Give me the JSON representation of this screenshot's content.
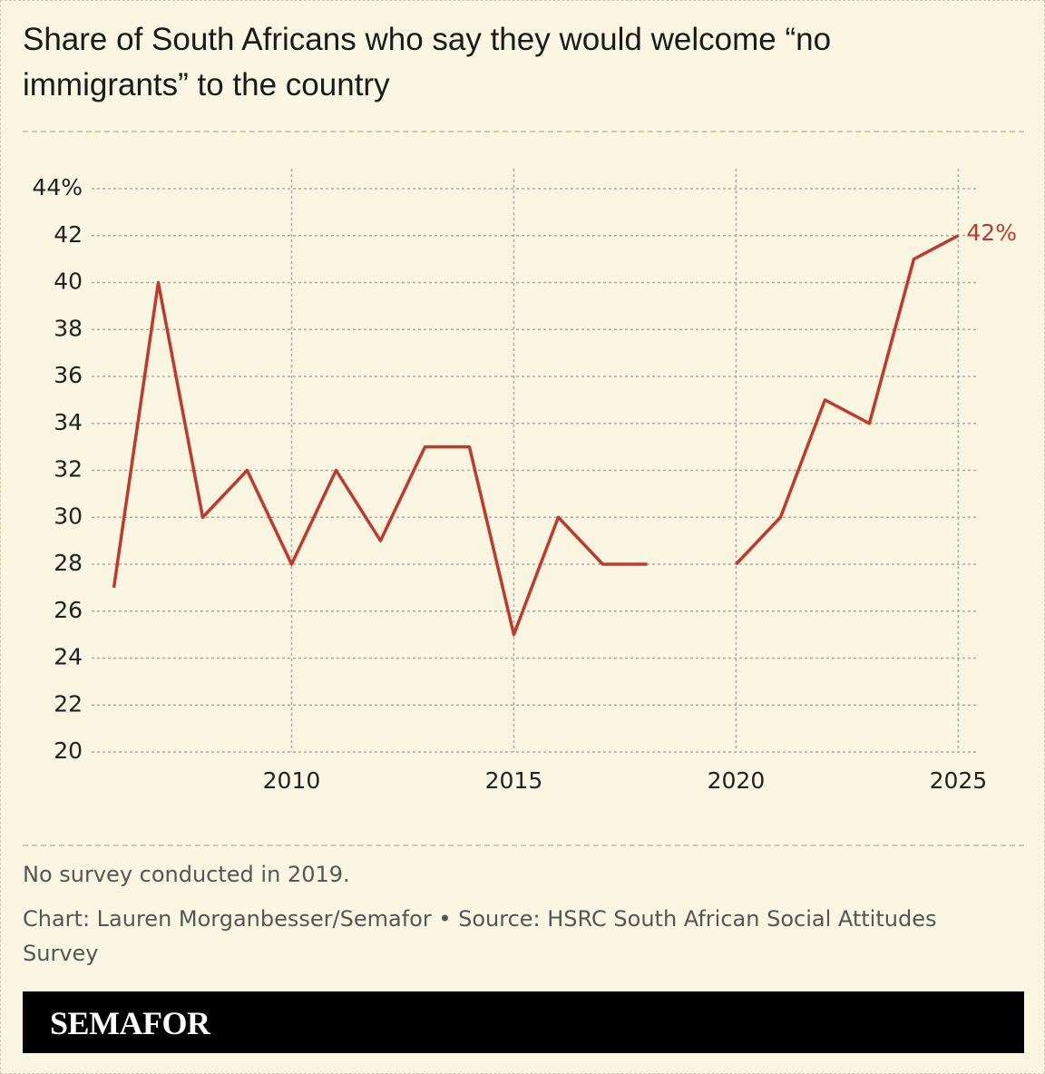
{
  "chart_data": {
    "type": "line",
    "title": "Share of South Africans who say they would welcome “no immigrants” to the country",
    "x": [
      2006,
      2007,
      2008,
      2009,
      2010,
      2011,
      2012,
      2013,
      2014,
      2015,
      2016,
      2017,
      2018,
      2019,
      2020,
      2021,
      2022,
      2023,
      2024,
      2025
    ],
    "values": [
      27,
      40,
      30,
      32,
      28,
      32,
      29,
      33,
      33,
      25,
      30,
      28,
      28,
      null,
      28,
      30,
      35,
      34,
      41,
      42
    ],
    "value_labels": [
      null,
      null,
      null,
      null,
      null,
      null,
      null,
      null,
      null,
      null,
      null,
      null,
      null,
      null,
      null,
      null,
      null,
      null,
      null,
      "42%"
    ],
    "color": "#c0392b",
    "xlim": [
      2005.5,
      2025.4
    ],
    "xticks": [
      2010,
      2015,
      2020,
      2025
    ],
    "ylim": [
      20,
      44
    ],
    "yticks": [
      20,
      22,
      24,
      26,
      28,
      30,
      32,
      34,
      36,
      38,
      40,
      42,
      {
        "value": 44,
        "label": "44%"
      }
    ],
    "grid": true,
    "note": "No survey conducted in 2019.",
    "source": "Chart: Lauren Morganbesser/Semafor • Source: HSRC South African Social Attitudes Survey",
    "brand": "SEMAFOR"
  }
}
